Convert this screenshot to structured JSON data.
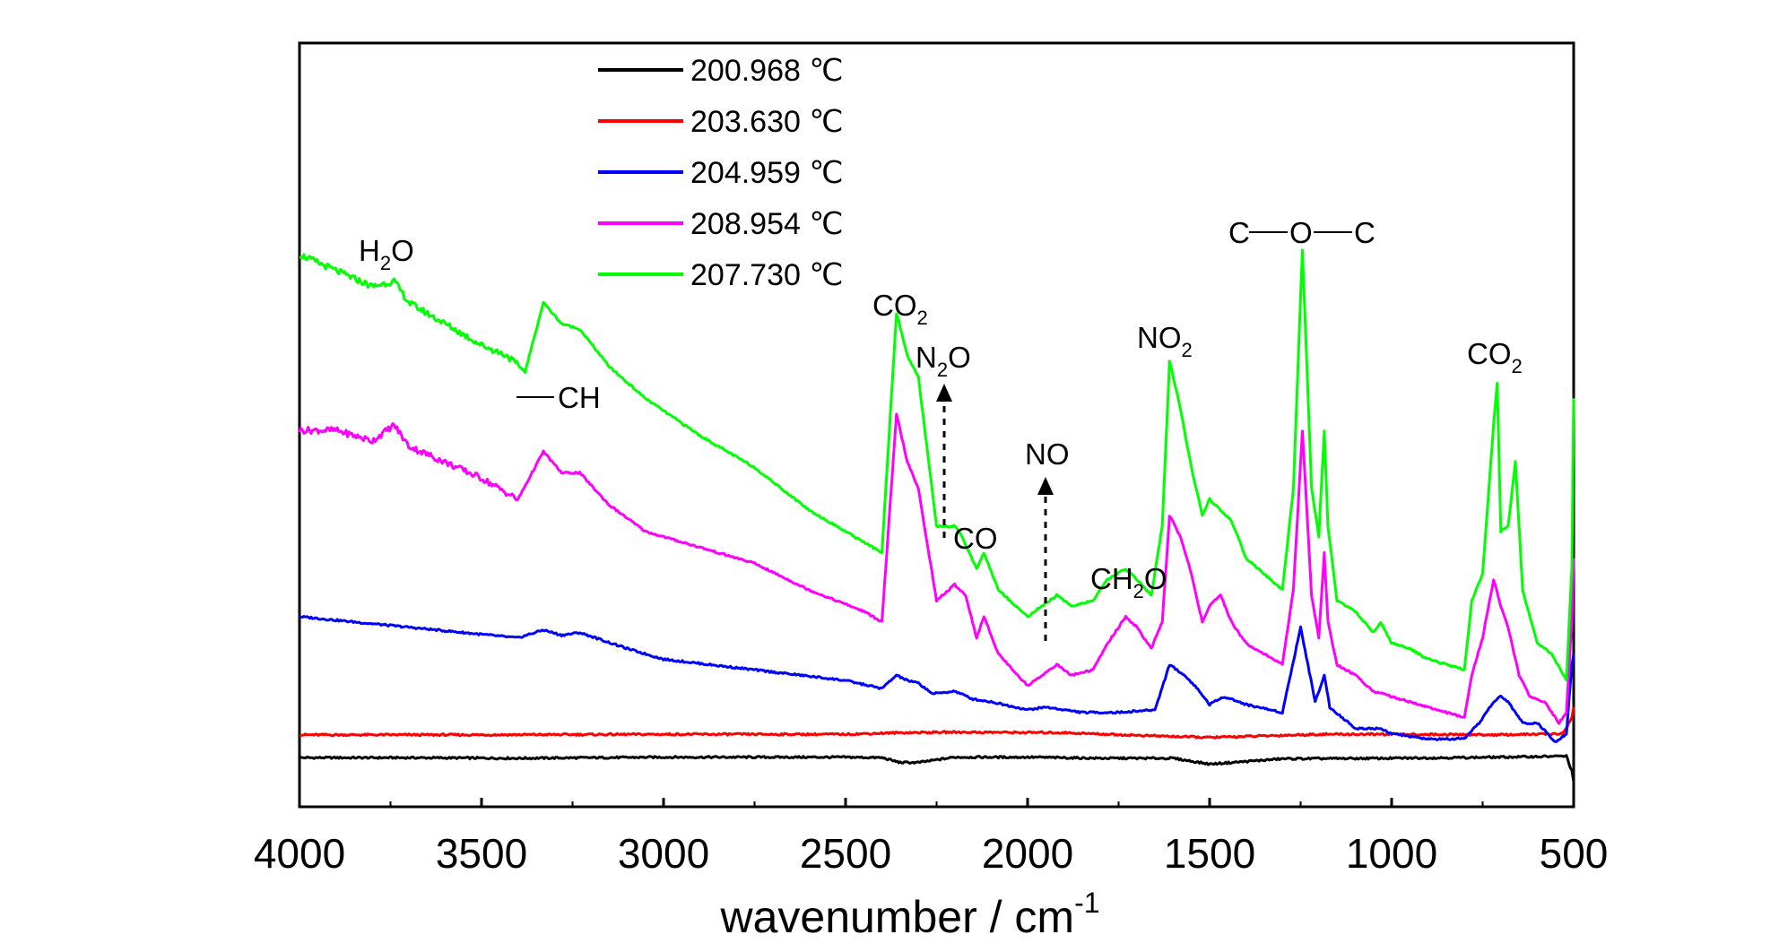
{
  "chart_data": {
    "type": "line",
    "title": "",
    "xlabel": "wavenumber / cm",
    "xlabel_superscript": "-1",
    "ylabel": "",
    "xlim": [
      4000,
      500
    ],
    "x_reversed": true,
    "x_ticks": [
      4000,
      3500,
      3000,
      2500,
      2000,
      1500,
      1000,
      500
    ],
    "ylim": [
      0,
      1
    ],
    "y_ticks_shown": false,
    "grid": false,
    "legend_position": "top-left",
    "series": [
      {
        "name": "200.968 ℃",
        "color": "#000000",
        "x": [
          4000,
          3700,
          3400,
          3000,
          2500,
          2400,
          2350,
          2300,
          2200,
          2000,
          1800,
          1600,
          1500,
          1300,
          1000,
          700,
          520,
          505,
          500
        ],
        "y": [
          0.045,
          0.045,
          0.044,
          0.046,
          0.046,
          0.045,
          0.036,
          0.036,
          0.046,
          0.046,
          0.044,
          0.044,
          0.033,
          0.043,
          0.044,
          0.046,
          0.048,
          0.02,
          0.0
        ]
      },
      {
        "name": "203.630 ℃",
        "color": "#ff0000",
        "x": [
          4000,
          3500,
          3000,
          2500,
          2350,
          2200,
          1900,
          1700,
          1500,
          1200,
          1000,
          700,
          530,
          505,
          500
        ],
        "y": [
          0.088,
          0.088,
          0.089,
          0.089,
          0.092,
          0.093,
          0.092,
          0.087,
          0.083,
          0.089,
          0.089,
          0.088,
          0.09,
          0.12,
          0.14
        ]
      },
      {
        "name": "204.959 ℃",
        "color": "#0000ff",
        "x": [
          4000,
          3700,
          3400,
          3330,
          3280,
          3230,
          3100,
          3000,
          2500,
          2400,
          2360,
          2330,
          2300,
          2260,
          2200,
          2150,
          2100,
          2000,
          1950,
          1900,
          1850,
          1750,
          1650,
          1610,
          1570,
          1540,
          1500,
          1460,
          1400,
          1300,
          1250,
          1210,
          1185,
          1170,
          1100,
          1030,
          1000,
          900,
          800,
          760,
          720,
          700,
          680,
          640,
          600,
          550,
          520,
          505,
          500
        ],
        "y": [
          0.31,
          0.29,
          0.27,
          0.285,
          0.275,
          0.28,
          0.25,
          0.23,
          0.19,
          0.175,
          0.2,
          0.19,
          0.185,
          0.165,
          0.17,
          0.155,
          0.15,
          0.135,
          0.14,
          0.135,
          0.13,
          0.13,
          0.135,
          0.22,
          0.2,
          0.18,
          0.145,
          0.16,
          0.145,
          0.13,
          0.29,
          0.15,
          0.2,
          0.14,
          0.1,
          0.1,
          0.09,
          0.08,
          0.08,
          0.11,
          0.15,
          0.16,
          0.15,
          0.11,
          0.11,
          0.075,
          0.09,
          0.22,
          0.24
        ]
      },
      {
        "name": "208.954 ℃",
        "color": "#ff00ff",
        "x": [
          4000,
          3900,
          3800,
          3740,
          3700,
          3600,
          3500,
          3400,
          3330,
          3280,
          3230,
          3150,
          3050,
          2900,
          2750,
          2600,
          2450,
          2400,
          2360,
          2330,
          2300,
          2250,
          2200,
          2170,
          2140,
          2120,
          2080,
          2000,
          1960,
          1920,
          1880,
          1820,
          1780,
          1730,
          1700,
          1660,
          1630,
          1610,
          1580,
          1550,
          1520,
          1500,
          1470,
          1440,
          1400,
          1350,
          1300,
          1270,
          1245,
          1220,
          1200,
          1185,
          1175,
          1150,
          1100,
          1050,
          1000,
          950,
          900,
          800,
          780,
          750,
          720,
          700,
          680,
          650,
          620,
          580,
          540,
          520,
          505,
          500
        ],
        "y": [
          0.66,
          0.66,
          0.64,
          0.67,
          0.63,
          0.6,
          0.57,
          0.53,
          0.62,
          0.58,
          0.58,
          0.52,
          0.47,
          0.44,
          0.41,
          0.36,
          0.32,
          0.3,
          0.69,
          0.6,
          0.55,
          0.34,
          0.37,
          0.35,
          0.27,
          0.31,
          0.24,
          0.18,
          0.2,
          0.22,
          0.2,
          0.21,
          0.26,
          0.31,
          0.29,
          0.25,
          0.3,
          0.5,
          0.46,
          0.39,
          0.3,
          0.33,
          0.35,
          0.3,
          0.26,
          0.24,
          0.22,
          0.36,
          0.66,
          0.35,
          0.27,
          0.43,
          0.3,
          0.22,
          0.2,
          0.17,
          0.16,
          0.15,
          0.14,
          0.12,
          0.2,
          0.27,
          0.38,
          0.33,
          0.29,
          0.2,
          0.16,
          0.15,
          0.11,
          0.13,
          0.3,
          0.42
        ]
      },
      {
        "name": "207.730 ℃",
        "color": "#00ff00",
        "x": [
          4000,
          3900,
          3800,
          3740,
          3700,
          3600,
          3500,
          3430,
          3380,
          3330,
          3280,
          3230,
          3150,
          3050,
          2900,
          2750,
          2600,
          2450,
          2400,
          2360,
          2330,
          2300,
          2250,
          2200,
          2180,
          2140,
          2120,
          2080,
          2000,
          1960,
          1920,
          1880,
          1820,
          1780,
          1730,
          1700,
          1660,
          1630,
          1610,
          1580,
          1550,
          1520,
          1500,
          1470,
          1440,
          1400,
          1350,
          1300,
          1270,
          1245,
          1220,
          1200,
          1185,
          1175,
          1150,
          1100,
          1050,
          1030,
          1000,
          950,
          900,
          800,
          780,
          750,
          720,
          710,
          700,
          680,
          660,
          640,
          600,
          560,
          520,
          505,
          500
        ],
        "y": [
          0.99,
          0.96,
          0.93,
          0.94,
          0.9,
          0.86,
          0.82,
          0.8,
          0.77,
          0.9,
          0.86,
          0.85,
          0.78,
          0.72,
          0.65,
          0.59,
          0.51,
          0.45,
          0.43,
          0.88,
          0.8,
          0.76,
          0.48,
          0.48,
          0.46,
          0.4,
          0.43,
          0.36,
          0.31,
          0.33,
          0.35,
          0.33,
          0.34,
          0.38,
          0.4,
          0.38,
          0.35,
          0.48,
          0.79,
          0.7,
          0.59,
          0.5,
          0.53,
          0.51,
          0.49,
          0.42,
          0.39,
          0.36,
          0.55,
          1.0,
          0.55,
          0.46,
          0.66,
          0.48,
          0.34,
          0.32,
          0.28,
          0.3,
          0.26,
          0.25,
          0.23,
          0.21,
          0.34,
          0.39,
          0.67,
          0.75,
          0.47,
          0.48,
          0.6,
          0.36,
          0.26,
          0.24,
          0.19,
          0.4,
          0.72
        ]
      }
    ],
    "annotations": [
      {
        "text": "H",
        "sub": "2",
        "tail": "O"
      },
      {
        "text": "CH",
        "sub": "",
        "tail": "",
        "prefix_bond": true
      },
      {
        "text": "CO",
        "sub": "2",
        "tail": ""
      },
      {
        "text": "N",
        "sub": "2",
        "tail": "O"
      },
      {
        "text": "CO",
        "sub": "",
        "tail": ""
      },
      {
        "text": "NO",
        "sub": "",
        "tail": ""
      },
      {
        "text": "CH",
        "sub": "2",
        "tail": "O"
      },
      {
        "text": "NO",
        "sub": "2",
        "tail": ""
      },
      {
        "text": "C",
        "sub": "",
        "tail": "",
        "ether": [
          "O",
          "C"
        ]
      },
      {
        "text": "CO",
        "sub": "2",
        "tail": ""
      }
    ]
  }
}
